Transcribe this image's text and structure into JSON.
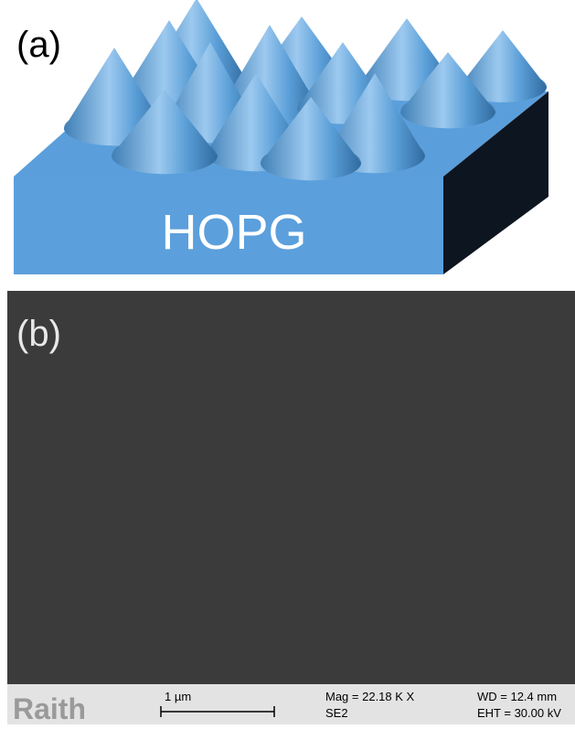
{
  "panel_a": {
    "label": "(a)",
    "substrate": "HOPG"
  },
  "panel_b": {
    "label": "(b)",
    "info_bar": {
      "brand": "Raith",
      "scale": "1 µm",
      "mag": "Mag = 22.18 K X",
      "detector": "SE2",
      "wd": "WD = 12.4 mm",
      "eht": "EHT = 30.00 kV"
    }
  }
}
